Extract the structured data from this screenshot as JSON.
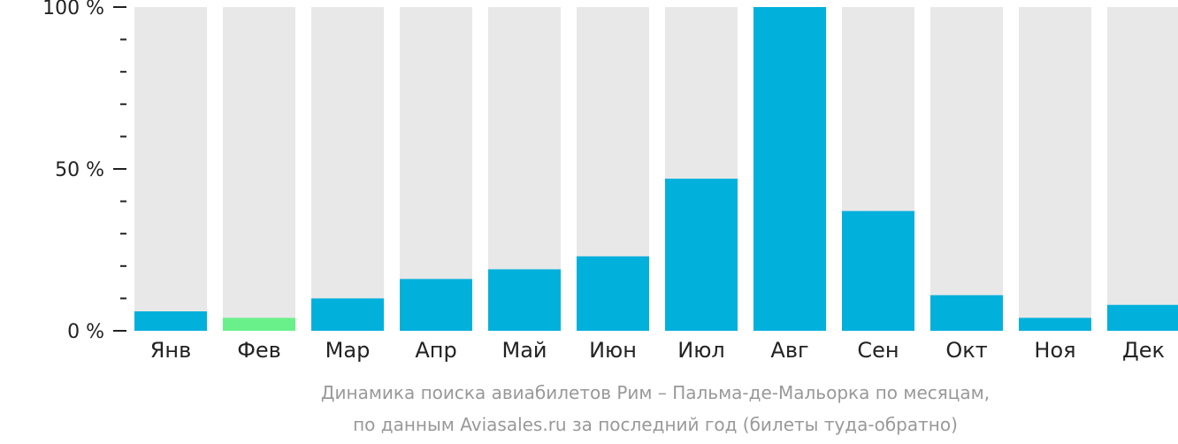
{
  "chart_data": {
    "type": "bar",
    "categories": [
      "Янв",
      "Фев",
      "Мар",
      "Апр",
      "Май",
      "Июн",
      "Июл",
      "Авг",
      "Сен",
      "Окт",
      "Ноя",
      "Дек"
    ],
    "values": [
      6,
      4,
      10,
      16,
      19,
      23,
      47,
      100,
      37,
      11,
      4,
      8
    ],
    "ylim": [
      0,
      100
    ],
    "y_ticks": [
      {
        "value": 0,
        "label": "0 %"
      },
      {
        "value": 50,
        "label": "50 %"
      },
      {
        "value": 100,
        "label": "100 %"
      }
    ],
    "y_minor_tick_step": 10,
    "highlight_index": 1,
    "colors": {
      "bar": "#02b0dc",
      "highlight": "#6af08b",
      "track": "#e8e8e8",
      "axis": "#222222"
    },
    "grid": false,
    "legend": "none"
  },
  "caption": {
    "line1": "Динамика поиска авиабилетов Рим – Пальма-де-Мальорка по месяцам,",
    "line2": "по данным Aviasales.ru за последний год (билеты туда-обратно)"
  }
}
